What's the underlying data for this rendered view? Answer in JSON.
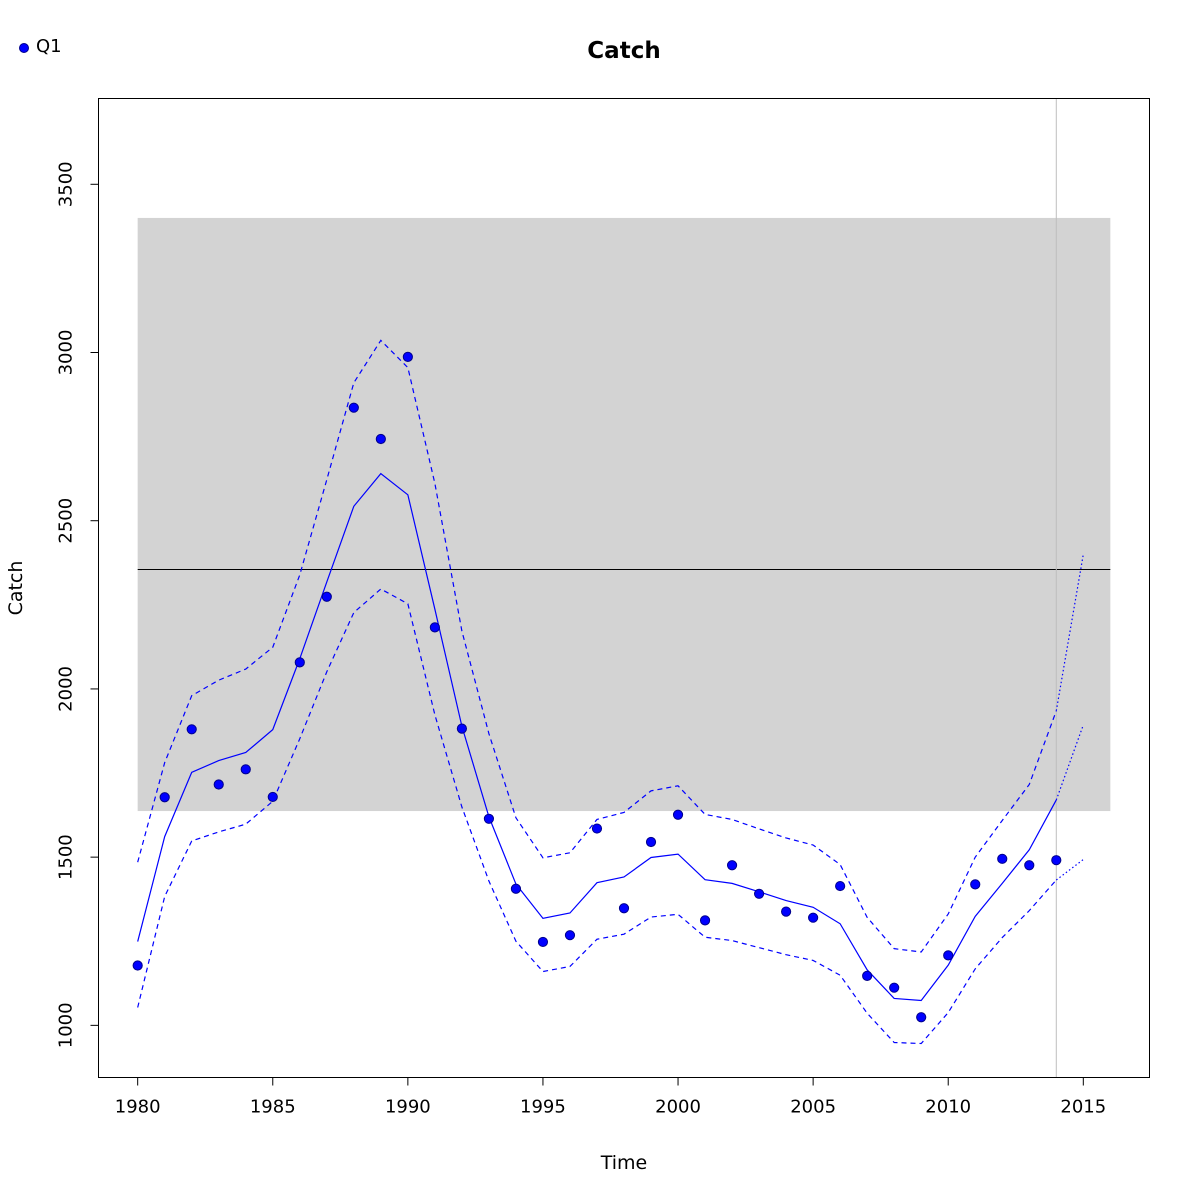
{
  "chart_data": {
    "type": "scatter",
    "title": "Catch",
    "xlabel": "Time",
    "ylabel": "Catch",
    "xlim": [
      1978.55,
      2017.45
    ],
    "ylim": [
      845,
      3755
    ],
    "x_ticks": [
      1980,
      1985,
      1990,
      1995,
      2000,
      2005,
      2010,
      2015
    ],
    "y_ticks": [
      1000,
      1500,
      2000,
      2500,
      3000,
      3500
    ],
    "legend": {
      "position": "top-left",
      "label": "Q1"
    },
    "band": {
      "x_range": [
        1980,
        2016
      ],
      "y_range": [
        1637,
        3400
      ],
      "color": "#d3d3d3"
    },
    "hline": {
      "y": 2355,
      "color": "#000000"
    },
    "vline": {
      "x": 2014,
      "color": "#bebebe"
    },
    "series": [
      {
        "name": "Q1",
        "kind": "points",
        "color": "#0000ff",
        "x": [
          1980,
          1981,
          1982,
          1983,
          1984,
          1985,
          1986,
          1987,
          1988,
          1989,
          1990,
          1991,
          1992,
          1993,
          1994,
          1995,
          1996,
          1997,
          1998,
          1999,
          2000,
          2001,
          2002,
          2003,
          2004,
          2005,
          2006,
          2007,
          2008,
          2009,
          2010,
          2011,
          2012,
          2013,
          2014
        ],
        "values": [
          1178,
          1678,
          1880,
          1716,
          1761,
          1679,
          2079,
          2274,
          2836,
          2743,
          2987,
          2183,
          1882,
          1614,
          1406,
          1248,
          1268,
          1585,
          1348,
          1545,
          1626,
          1312,
          1476,
          1391,
          1338,
          1320,
          1414,
          1147,
          1112,
          1024,
          1208,
          1419,
          1495,
          1476,
          1491
        ]
      },
      {
        "kind": "line",
        "style": "solid",
        "color": "#0000ff",
        "x": [
          1980,
          1981,
          1982,
          1983,
          1984,
          1985,
          1986,
          1987,
          1988,
          1989,
          1990,
          1991,
          1992,
          1993,
          1994,
          1995,
          1996,
          1997,
          1998,
          1999,
          2000,
          2001,
          2002,
          2003,
          2004,
          2005,
          2006,
          2007,
          2008,
          2009,
          2010,
          2011,
          2012,
          2013,
          2014
        ],
        "values": [
          1249,
          1561,
          1752,
          1787,
          1811,
          1879,
          2090,
          2318,
          2543,
          2640,
          2577,
          2237,
          1889,
          1620,
          1420,
          1318,
          1334,
          1424,
          1441,
          1499,
          1509,
          1433,
          1422,
          1397,
          1371,
          1351,
          1302,
          1165,
          1080,
          1074,
          1179,
          1324,
          1422,
          1522,
          1670
        ]
      },
      {
        "kind": "line",
        "style": "dashed",
        "color": "#0000ff",
        "x": [
          1980,
          1981,
          1982,
          1983,
          1984,
          1985,
          1986,
          1987,
          1988,
          1989,
          1990,
          1991,
          1992,
          1993,
          1994,
          1995,
          1996,
          1997,
          1998,
          1999,
          2000,
          2001,
          2002,
          2003,
          2004,
          2005,
          2006,
          2007,
          2008,
          2009,
          2010,
          2011,
          2012,
          2013,
          2014
        ],
        "values": [
          1485,
          1781,
          1980,
          2026,
          2059,
          2124,
          2339,
          2622,
          2910,
          3036,
          2955,
          2611,
          2172,
          1867,
          1617,
          1498,
          1513,
          1612,
          1633,
          1697,
          1712,
          1627,
          1612,
          1584,
          1557,
          1536,
          1478,
          1321,
          1228,
          1218,
          1331,
          1500,
          1609,
          1716,
          1935
        ]
      },
      {
        "kind": "line",
        "style": "dashed",
        "color": "#0000ff",
        "x": [
          1980,
          1981,
          1982,
          1983,
          1984,
          1985,
          1986,
          1987,
          1988,
          1989,
          1990,
          1991,
          1992,
          1993,
          1994,
          1995,
          1996,
          1997,
          1998,
          1999,
          2000,
          2001,
          2002,
          2003,
          2004,
          2005,
          2006,
          2007,
          2008,
          2009,
          2010,
          2011,
          2012,
          2013,
          2014
        ],
        "values": [
          1053,
          1383,
          1548,
          1575,
          1598,
          1666,
          1852,
          2051,
          2227,
          2297,
          2253,
          1923,
          1649,
          1429,
          1250,
          1160,
          1175,
          1256,
          1271,
          1322,
          1330,
          1262,
          1252,
          1231,
          1210,
          1193,
          1149,
          1036,
          949,
          946,
          1038,
          1168,
          1261,
          1341,
          1432
        ]
      },
      {
        "kind": "projection",
        "style": "dotted",
        "color": "#0000ff",
        "x": [
          2014,
          2015
        ],
        "values": [
          1670,
          1893
        ]
      },
      {
        "kind": "projection",
        "style": "dotted",
        "color": "#0000ff",
        "x": [
          2014,
          2015
        ],
        "values": [
          1935,
          2400
        ]
      },
      {
        "kind": "projection",
        "style": "dotted",
        "color": "#0000ff",
        "x": [
          2014,
          2015
        ],
        "values": [
          1432,
          1493
        ]
      }
    ]
  }
}
